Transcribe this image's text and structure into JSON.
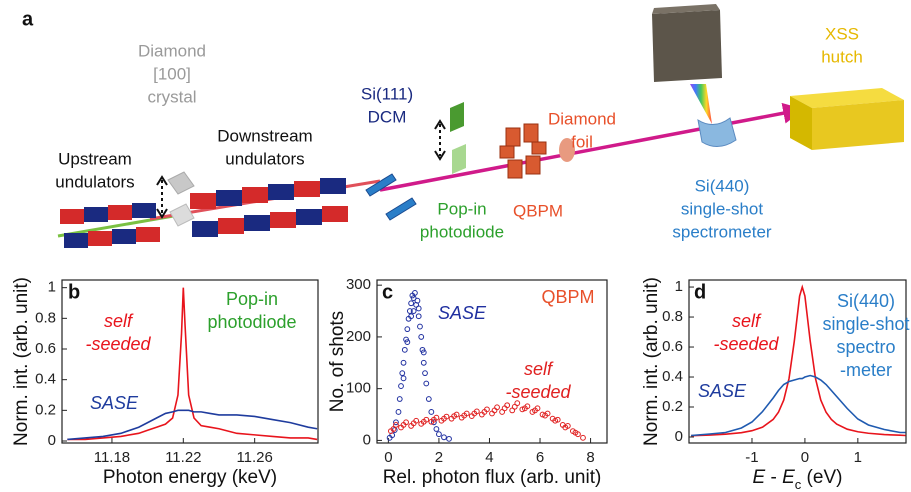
{
  "diagram": {
    "panel_label": "a",
    "labels": [
      {
        "lines": [
          "Diamond",
          "[100]",
          "crystal"
        ],
        "color": "#9a9a9a"
      },
      {
        "lines": [
          "Upstream",
          "undulators"
        ],
        "color": "#111111"
      },
      {
        "lines": [
          "Downstream",
          "undulators"
        ],
        "color": "#111111"
      },
      {
        "lines": [
          "Si(111)",
          "DCM"
        ],
        "color": "#1a2a80"
      },
      {
        "lines": [
          "Pop-in",
          "photodiode"
        ],
        "color": "#2ca02c"
      },
      {
        "lines": [
          "Diamond",
          "foil"
        ],
        "color": "#e8502a"
      },
      {
        "lines": [
          "QBPM"
        ],
        "color": "#e8502a"
      },
      {
        "lines": [
          "Si(440)",
          "single-shot",
          "spectrometer"
        ],
        "color": "#2a7ec8"
      },
      {
        "lines": [
          "XSS",
          "hutch"
        ],
        "color": "#e6b800"
      }
    ]
  },
  "chart_data": [
    {
      "type": "line",
      "panel_label": "b",
      "xlabel": "Photon energy (keV)",
      "ylabel": "Norm. int. (arb. unit)",
      "xlim": [
        11.152,
        11.2955
      ],
      "ylim": [
        -0.013,
        1.05
      ],
      "xticks": [
        11.18,
        11.22,
        11.26
      ],
      "yticks": [
        0,
        0.2,
        0.4,
        0.6,
        0.8,
        1
      ],
      "x": [
        11.155,
        11.165,
        11.175,
        11.185,
        11.195,
        11.2,
        11.205,
        11.21,
        11.214,
        11.217,
        11.219,
        11.22,
        11.221,
        11.223,
        11.226,
        11.23,
        11.235,
        11.24,
        11.25,
        11.26,
        11.27,
        11.28,
        11.29,
        11.295
      ],
      "series": [
        {
          "color": "#e8141c",
          "values": [
            0.01,
            0.01,
            0.02,
            0.03,
            0.05,
            0.07,
            0.09,
            0.11,
            0.15,
            0.3,
            0.7,
            1.0,
            0.75,
            0.3,
            0.15,
            0.1,
            0.09,
            0.08,
            0.05,
            0.04,
            0.03,
            0.02,
            0.02,
            0.01
          ]
        },
        {
          "color": "#1f3c9e",
          "values": [
            0.01,
            0.02,
            0.03,
            0.05,
            0.09,
            0.12,
            0.15,
            0.18,
            0.19,
            0.2,
            0.2,
            0.2,
            0.2,
            0.2,
            0.19,
            0.19,
            0.18,
            0.17,
            0.17,
            0.16,
            0.14,
            0.12,
            0.09,
            0.08
          ]
        }
      ],
      "annotations": [
        {
          "lines": [
            "self",
            "-seeded"
          ],
          "color": "#e8141c",
          "style": "italic"
        },
        {
          "lines": [
            "SASE"
          ],
          "color": "#1f3c9e",
          "style": "italic"
        },
        {
          "lines": [
            "Pop-in",
            "photodiode"
          ],
          "color": "#2ca02c",
          "style": "normal"
        }
      ]
    },
    {
      "type": "scatter",
      "panel_label": "c",
      "xlabel": "Rel. photon flux (arb. unit)",
      "ylabel": "No. of shots",
      "xlim": [
        -0.45,
        8.65
      ],
      "ylim": [
        -5,
        310
      ],
      "xticks": [
        0,
        2,
        4,
        6,
        8
      ],
      "yticks": [
        0,
        100,
        200,
        300
      ],
      "series": [
        {
          "color": "#2030a0",
          "x": [
            0.05,
            0.15,
            0.25,
            0.3,
            0.4,
            0.45,
            0.5,
            0.55,
            0.6,
            0.65,
            0.7,
            0.75,
            0.8,
            0.85,
            0.9,
            0.95,
            1.0,
            1.05,
            1.1,
            1.15,
            1.2,
            1.25,
            1.3,
            1.35,
            1.4,
            1.45,
            1.5,
            1.6,
            1.7,
            1.8,
            1.9,
            2.0,
            2.2,
            2.4,
            0.75,
            0.9,
            1.2,
            1.4,
            1.0,
            0.6
          ],
          "values": [
            5,
            10,
            20,
            35,
            55,
            80,
            105,
            130,
            150,
            175,
            195,
            215,
            235,
            250,
            265,
            280,
            275,
            285,
            262,
            270,
            240,
            220,
            200,
            175,
            150,
            130,
            110,
            80,
            55,
            35,
            22,
            12,
            6,
            3,
            190,
            240,
            255,
            170,
            250,
            120
          ]
        },
        {
          "color": "#e02020",
          "x": [
            0.1,
            0.3,
            0.5,
            0.7,
            0.9,
            1.1,
            1.3,
            1.5,
            1.7,
            1.9,
            2.1,
            2.3,
            2.5,
            2.7,
            2.9,
            3.1,
            3.3,
            3.5,
            3.7,
            3.9,
            4.1,
            4.3,
            4.5,
            4.7,
            4.9,
            5.1,
            5.3,
            5.5,
            5.7,
            5.9,
            6.1,
            6.3,
            6.5,
            6.7,
            6.9,
            7.1,
            7.3,
            7.5,
            7.7,
            0.2,
            0.6,
            1.0,
            1.4,
            1.8,
            2.2,
            2.6,
            3.0,
            3.4,
            3.8,
            4.2,
            4.6,
            5.0,
            5.4,
            5.8,
            6.2,
            6.6,
            7.0,
            7.4
          ],
          "values": [
            18,
            30,
            25,
            35,
            28,
            38,
            32,
            40,
            36,
            44,
            38,
            46,
            42,
            50,
            44,
            52,
            47,
            56,
            50,
            60,
            52,
            64,
            55,
            68,
            58,
            72,
            60,
            66,
            55,
            62,
            50,
            52,
            42,
            40,
            30,
            28,
            18,
            12,
            5,
            22,
            30,
            33,
            36,
            40,
            42,
            47,
            48,
            52,
            55,
            58,
            62,
            65,
            62,
            58,
            48,
            38,
            25,
            15
          ]
        }
      ],
      "annotations": [
        {
          "lines": [
            "SASE"
          ],
          "color": "#2030a0",
          "style": "italic"
        },
        {
          "lines": [
            "self",
            "-seeded"
          ],
          "color": "#e02020",
          "style": "italic"
        },
        {
          "lines": [
            "QBPM"
          ],
          "color": "#e8502a",
          "style": "normal"
        }
      ]
    },
    {
      "type": "line",
      "panel_label": "d",
      "xlabel": [
        "E",
        " - ",
        "E",
        "c",
        " (eV)"
      ],
      "ylabel": "Norm. int. (arb. unit)",
      "xlim": [
        -2.19,
        1.91
      ],
      "ylim": [
        -0.04,
        1.047
      ],
      "xticks": [
        -1,
        0,
        1
      ],
      "yticks": [
        0,
        0.2,
        0.4,
        0.6,
        0.8,
        1
      ],
      "x": [
        -2.15,
        -1.8,
        -1.5,
        -1.2,
        -1.0,
        -0.8,
        -0.6,
        -0.5,
        -0.4,
        -0.3,
        -0.2,
        -0.1,
        -0.05,
        0,
        0.1,
        0.2,
        0.3,
        0.4,
        0.5,
        0.6,
        0.8,
        1.0,
        1.2,
        1.5,
        1.8,
        1.9
      ],
      "series": [
        {
          "color": "#e8141c",
          "values": [
            0.009,
            0.013,
            0.019,
            0.029,
            0.042,
            0.066,
            0.117,
            0.165,
            0.246,
            0.39,
            0.64,
            0.94,
            1.0,
            0.94,
            0.64,
            0.39,
            0.246,
            0.165,
            0.117,
            0.086,
            0.052,
            0.035,
            0.025,
            0.016,
            0.012,
            0.01
          ]
        },
        {
          "color": "#1f5ab0",
          "values": [
            0.01,
            0.02,
            0.03,
            0.06,
            0.1,
            0.17,
            0.26,
            0.31,
            0.35,
            0.37,
            0.38,
            0.39,
            0.39,
            0.4,
            0.41,
            0.4,
            0.38,
            0.35,
            0.31,
            0.27,
            0.19,
            0.12,
            0.08,
            0.05,
            0.03,
            0.03
          ]
        }
      ],
      "annotations": [
        {
          "lines": [
            "self",
            "-seeded"
          ],
          "color": "#e8141c",
          "style": "italic"
        },
        {
          "lines": [
            "SASE"
          ],
          "color": "#1f3c9e",
          "style": "italic"
        },
        {
          "lines": [
            "Si(440)",
            "single-shot",
            "spectro",
            "-meter"
          ],
          "color": "#2a7ec8",
          "style": "normal"
        }
      ]
    }
  ]
}
